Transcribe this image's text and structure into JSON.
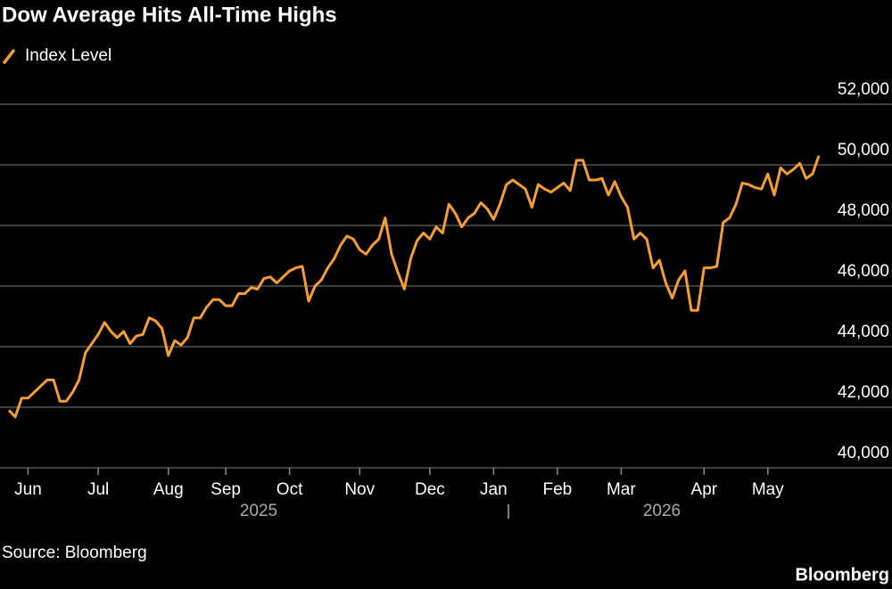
{
  "chart_data": {
    "type": "line",
    "title": "Dow Average Hits All-Time Highs",
    "source": "Source: Bloomberg",
    "brand": "Bloomberg",
    "categories": [
      null,
      null,
      null,
      "Jun",
      null,
      null,
      null,
      null,
      null,
      null,
      null,
      null,
      null,
      null,
      "Jul",
      null,
      null,
      null,
      null,
      null,
      null,
      null,
      null,
      null,
      null,
      "Aug",
      null,
      null,
      null,
      null,
      null,
      null,
      null,
      null,
      "Sep",
      null,
      null,
      null,
      null,
      null,
      null,
      null,
      null,
      null,
      "Oct",
      null,
      null,
      null,
      null,
      null,
      null,
      null,
      null,
      null,
      null,
      "Nov",
      null,
      null,
      null,
      null,
      null,
      null,
      null,
      null,
      null,
      null,
      "Dec",
      null,
      null,
      null,
      null,
      null,
      null,
      null,
      null,
      null,
      "Jan",
      null,
      null,
      null,
      null,
      null,
      null,
      null,
      null,
      null,
      "Feb",
      null,
      null,
      null,
      null,
      null,
      null,
      null,
      null,
      null,
      "Mar",
      null,
      null,
      null,
      null,
      null,
      null,
      null,
      null,
      null,
      null,
      null,
      null,
      "Apr",
      null,
      null,
      null,
      null,
      null,
      null,
      null,
      null,
      null,
      "May",
      null,
      null,
      null,
      null,
      null,
      null,
      null,
      null
    ],
    "x_groups": [
      "2025",
      "2026"
    ],
    "series": [
      {
        "name": "Index Level",
        "color": "#f59e35",
        "values": [
          41900,
          41680,
          42300,
          42300,
          42500,
          42700,
          42900,
          42900,
          42200,
          42200,
          42500,
          42900,
          43800,
          44100,
          44400,
          44800,
          44500,
          44300,
          44500,
          44100,
          44350,
          44400,
          44950,
          44850,
          44600,
          43700,
          44200,
          44050,
          44300,
          44950,
          44950,
          45300,
          45550,
          45550,
          45350,
          45350,
          45750,
          45750,
          45950,
          45900,
          46250,
          46300,
          46100,
          46300,
          46500,
          46600,
          46650,
          45500,
          46000,
          46200,
          46600,
          46900,
          47350,
          47650,
          47550,
          47200,
          47050,
          47350,
          47550,
          48250,
          47050,
          46450,
          45900,
          46900,
          47500,
          47750,
          47550,
          47950,
          47750,
          48700,
          48400,
          47950,
          48250,
          48400,
          48750,
          48550,
          48200,
          48700,
          49350,
          49500,
          49350,
          49200,
          48600,
          49350,
          49200,
          49100,
          49250,
          49400,
          49150,
          50150,
          50150,
          49500,
          49500,
          49550,
          49000,
          49450,
          48950,
          48600,
          47550,
          47750,
          47550,
          46600,
          46850,
          46100,
          45600,
          46200,
          46500,
          45200,
          45200,
          46600,
          46600,
          46650,
          48100,
          48250,
          48700,
          49400,
          49350,
          49250,
          49200,
          49700,
          49000,
          49900,
          49700,
          49850,
          50050,
          49550,
          49700,
          50300
        ]
      }
    ],
    "ylim": [
      40000,
      52000
    ],
    "yticks": [
      {
        "value": 40000,
        "label": "40,000"
      },
      {
        "value": 42000,
        "label": "42,000"
      },
      {
        "value": 44000,
        "label": "44,000"
      },
      {
        "value": 46000,
        "label": "46,000"
      },
      {
        "value": 48000,
        "label": "48,000"
      },
      {
        "value": 50000,
        "label": "50,000"
      },
      {
        "value": 52000,
        "label": "52,000"
      }
    ],
    "grid": true
  }
}
